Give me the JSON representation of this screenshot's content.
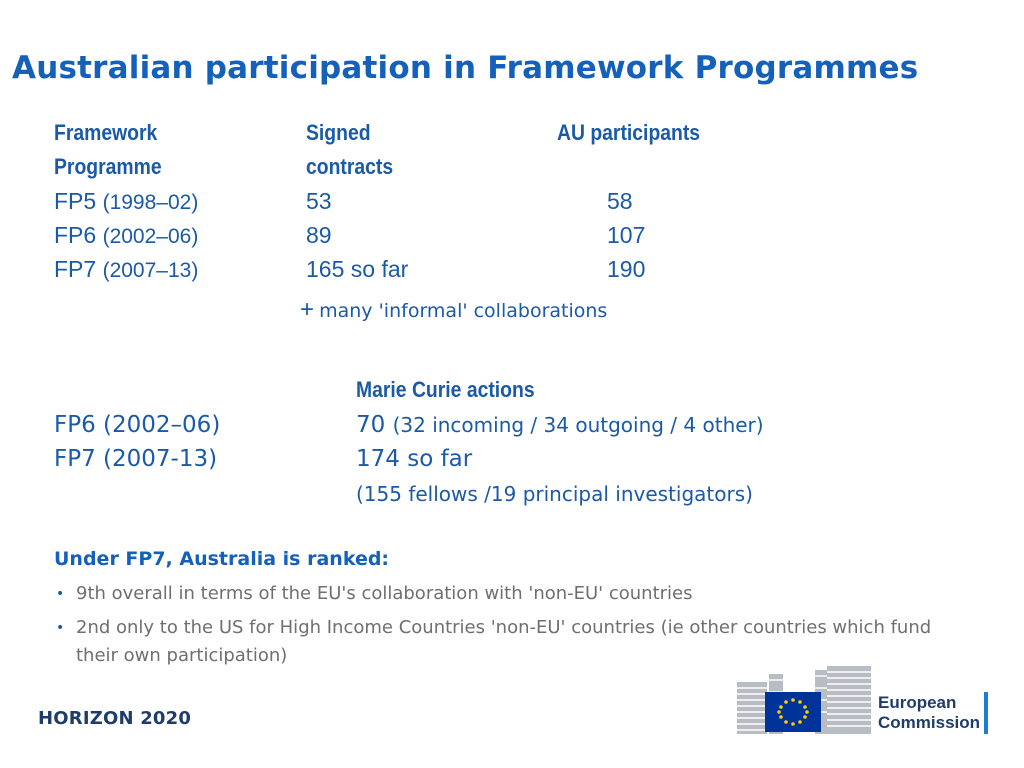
{
  "title": "Australian participation in Framework Programmes",
  "table": {
    "headers": {
      "fp_line1": "Framework",
      "fp_line2": "Programme",
      "signed_line1": "Signed",
      "signed_line2": "contracts",
      "au": "AU participants"
    },
    "rows": [
      {
        "fp": "FP5",
        "years": "(1998–02)",
        "signed": "53",
        "au": "58"
      },
      {
        "fp": "FP6",
        "years": "(2002–06)",
        "signed": "89",
        "au": "107"
      },
      {
        "fp": "FP7",
        "years": "(2007–13)",
        "signed": "165 so far",
        "au": "190"
      }
    ],
    "plus_symbol": "+",
    "plus_note": "many 'informal' collaborations"
  },
  "marie_curie": {
    "header": "Marie Curie actions",
    "rows": [
      {
        "label": "FP6 (2002–06)",
        "value": "70",
        "detail": "(32 incoming / 34 outgoing / 4 other)"
      },
      {
        "label": "FP7 (2007-13)",
        "value": "174 so far",
        "detail": ""
      }
    ],
    "note": "(155 fellows /19 principal investigators)"
  },
  "ranking": {
    "heading": "Under FP7, Australia is ranked:",
    "bullet_symbol": "•",
    "bullets": [
      "9th overall in terms of the EU's collaboration with 'non-EU' countries",
      "2nd only to the US for High Income Countries 'non-EU' countries (ie other countries which fund their own participation)"
    ]
  },
  "footer": {
    "program": "HORIZON 2020",
    "logo_line1": "European",
    "logo_line2": "Commission",
    "logo_icon": "eu-flag-icon"
  },
  "colors": {
    "accent": "#1b5aa6",
    "title": "#1560b8",
    "bullet_text": "#6f6f6f",
    "eu_blue": "#003399",
    "eu_star": "#ffcc00"
  }
}
